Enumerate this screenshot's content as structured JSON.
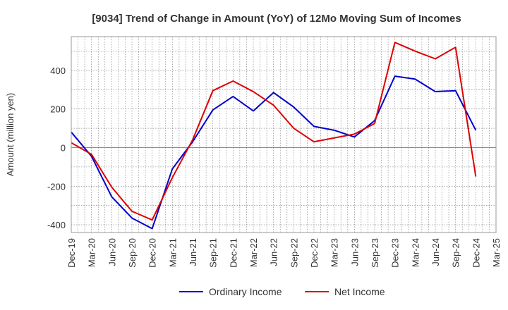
{
  "chart_data": {
    "type": "line",
    "title": "[9034]  Trend of Change in Amount (YoY) of 12Mo Moving Sum of Incomes",
    "xlabel": "",
    "ylabel": "Amount (million yen)",
    "categories": [
      "Dec-19",
      "Mar-20",
      "Jun-20",
      "Sep-20",
      "Dec-20",
      "Mar-21",
      "Jun-21",
      "Sep-21",
      "Dec-21",
      "Mar-22",
      "Jun-22",
      "Sep-22",
      "Dec-22",
      "Mar-23",
      "Jun-23",
      "Sep-23",
      "Dec-23",
      "Mar-24",
      "Jun-24",
      "Sep-24",
      "Dec-24",
      "Mar-25"
    ],
    "ylim": [
      -440,
      575
    ],
    "yticks": [
      -400,
      -200,
      0,
      200,
      400
    ],
    "ytick_labels": [
      "-400",
      "-200",
      "0",
      "200",
      "400"
    ],
    "grid": true,
    "legend_position": "bottom-center",
    "series": [
      {
        "name": "Ordinary Income",
        "color": "#0000cc",
        "values": [
          80,
          -45,
          -255,
          -365,
          -420,
          -110,
          30,
          195,
          265,
          190,
          285,
          210,
          110,
          90,
          55,
          140,
          370,
          355,
          290,
          295,
          90,
          null
        ]
      },
      {
        "name": "Net Income",
        "color": "#dd0000",
        "values": [
          25,
          -35,
          -205,
          -330,
          -375,
          -155,
          40,
          295,
          345,
          290,
          220,
          100,
          30,
          50,
          70,
          125,
          545,
          500,
          460,
          520,
          -150,
          null
        ]
      }
    ]
  }
}
